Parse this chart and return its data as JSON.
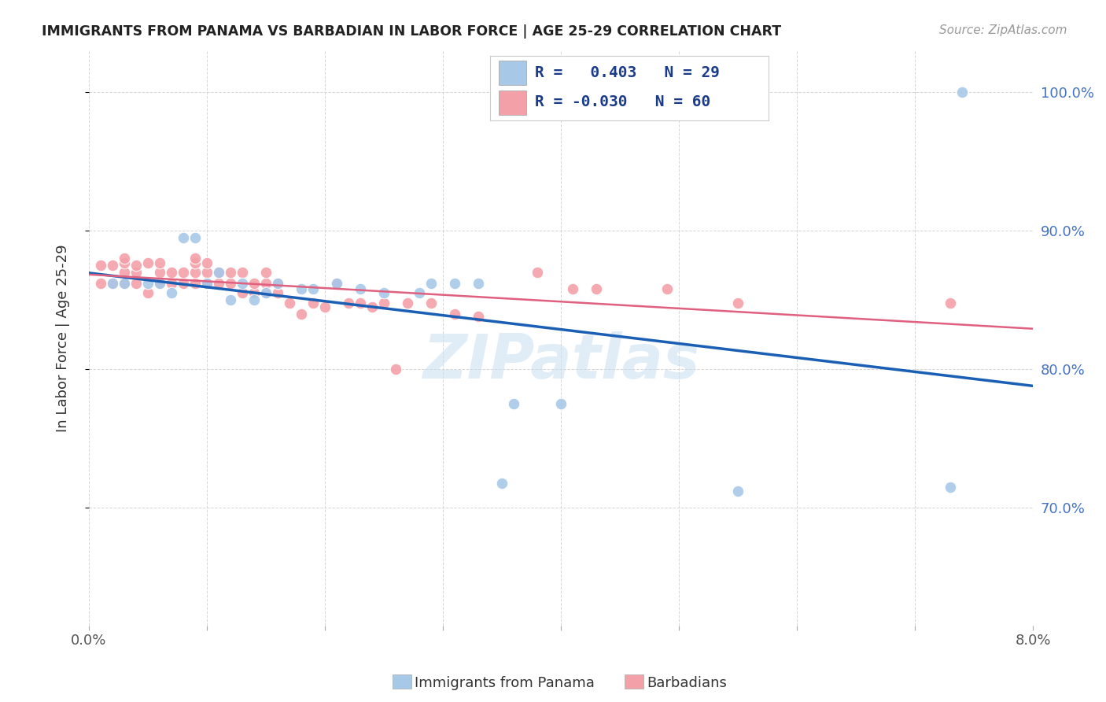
{
  "title": "IMMIGRANTS FROM PANAMA VS BARBADIAN IN LABOR FORCE | AGE 25-29 CORRELATION CHART",
  "source": "Source: ZipAtlas.com",
  "ylabel": "In Labor Force | Age 25-29",
  "xlim": [
    0.0,
    0.08
  ],
  "ylim": [
    0.615,
    1.03
  ],
  "yticks": [
    0.7,
    0.8,
    0.9,
    1.0
  ],
  "ytick_labels": [
    "70.0%",
    "80.0%",
    "90.0%",
    "100.0%"
  ],
  "xticks": [
    0.0,
    0.01,
    0.02,
    0.03,
    0.04,
    0.05,
    0.06,
    0.07,
    0.08
  ],
  "xtick_labels": [
    "0.0%",
    "",
    "",
    "",
    "",
    "",
    "",
    "",
    "8.0%"
  ],
  "legend1_R": " 0.403",
  "legend1_N": "29",
  "legend2_R": "-0.030",
  "legend2_N": "60",
  "blue_color": "#a8c8e8",
  "pink_color": "#f4a0a8",
  "line_blue": "#1a5fb4",
  "line_pink": "#e06080",
  "watermark": "ZIPatlas",
  "panama_x": [
    0.002,
    0.003,
    0.005,
    0.006,
    0.007,
    0.008,
    0.009,
    0.01,
    0.011,
    0.012,
    0.013,
    0.014,
    0.015,
    0.016,
    0.018,
    0.019,
    0.021,
    0.023,
    0.025,
    0.028,
    0.029,
    0.031,
    0.033,
    0.035,
    0.036,
    0.04,
    0.055,
    0.073,
    0.074
  ],
  "panama_y": [
    0.862,
    0.862,
    0.862,
    0.862,
    0.855,
    0.895,
    0.895,
    0.862,
    0.87,
    0.85,
    0.862,
    0.85,
    0.855,
    0.862,
    0.858,
    0.858,
    0.862,
    0.858,
    0.855,
    0.855,
    0.862,
    0.862,
    0.862,
    0.718,
    0.775,
    0.775,
    0.712,
    0.715,
    1.0
  ],
  "barbadian_x": [
    0.001,
    0.001,
    0.002,
    0.002,
    0.003,
    0.003,
    0.003,
    0.003,
    0.004,
    0.004,
    0.004,
    0.005,
    0.005,
    0.006,
    0.006,
    0.006,
    0.007,
    0.007,
    0.008,
    0.008,
    0.009,
    0.009,
    0.009,
    0.009,
    0.01,
    0.01,
    0.01,
    0.011,
    0.011,
    0.012,
    0.012,
    0.013,
    0.013,
    0.014,
    0.014,
    0.015,
    0.015,
    0.015,
    0.016,
    0.016,
    0.017,
    0.018,
    0.019,
    0.02,
    0.021,
    0.022,
    0.023,
    0.024,
    0.025,
    0.026,
    0.027,
    0.029,
    0.031,
    0.033,
    0.038,
    0.041,
    0.043,
    0.049,
    0.055,
    0.073
  ],
  "barbadian_y": [
    0.862,
    0.875,
    0.862,
    0.875,
    0.862,
    0.87,
    0.877,
    0.88,
    0.862,
    0.87,
    0.875,
    0.855,
    0.877,
    0.862,
    0.87,
    0.877,
    0.862,
    0.87,
    0.862,
    0.87,
    0.862,
    0.87,
    0.877,
    0.88,
    0.862,
    0.87,
    0.877,
    0.862,
    0.87,
    0.862,
    0.87,
    0.855,
    0.87,
    0.855,
    0.862,
    0.855,
    0.862,
    0.87,
    0.855,
    0.862,
    0.848,
    0.84,
    0.848,
    0.845,
    0.862,
    0.848,
    0.848,
    0.845,
    0.848,
    0.8,
    0.848,
    0.848,
    0.84,
    0.838,
    0.87,
    0.858,
    0.858,
    0.858,
    0.848,
    0.848
  ]
}
